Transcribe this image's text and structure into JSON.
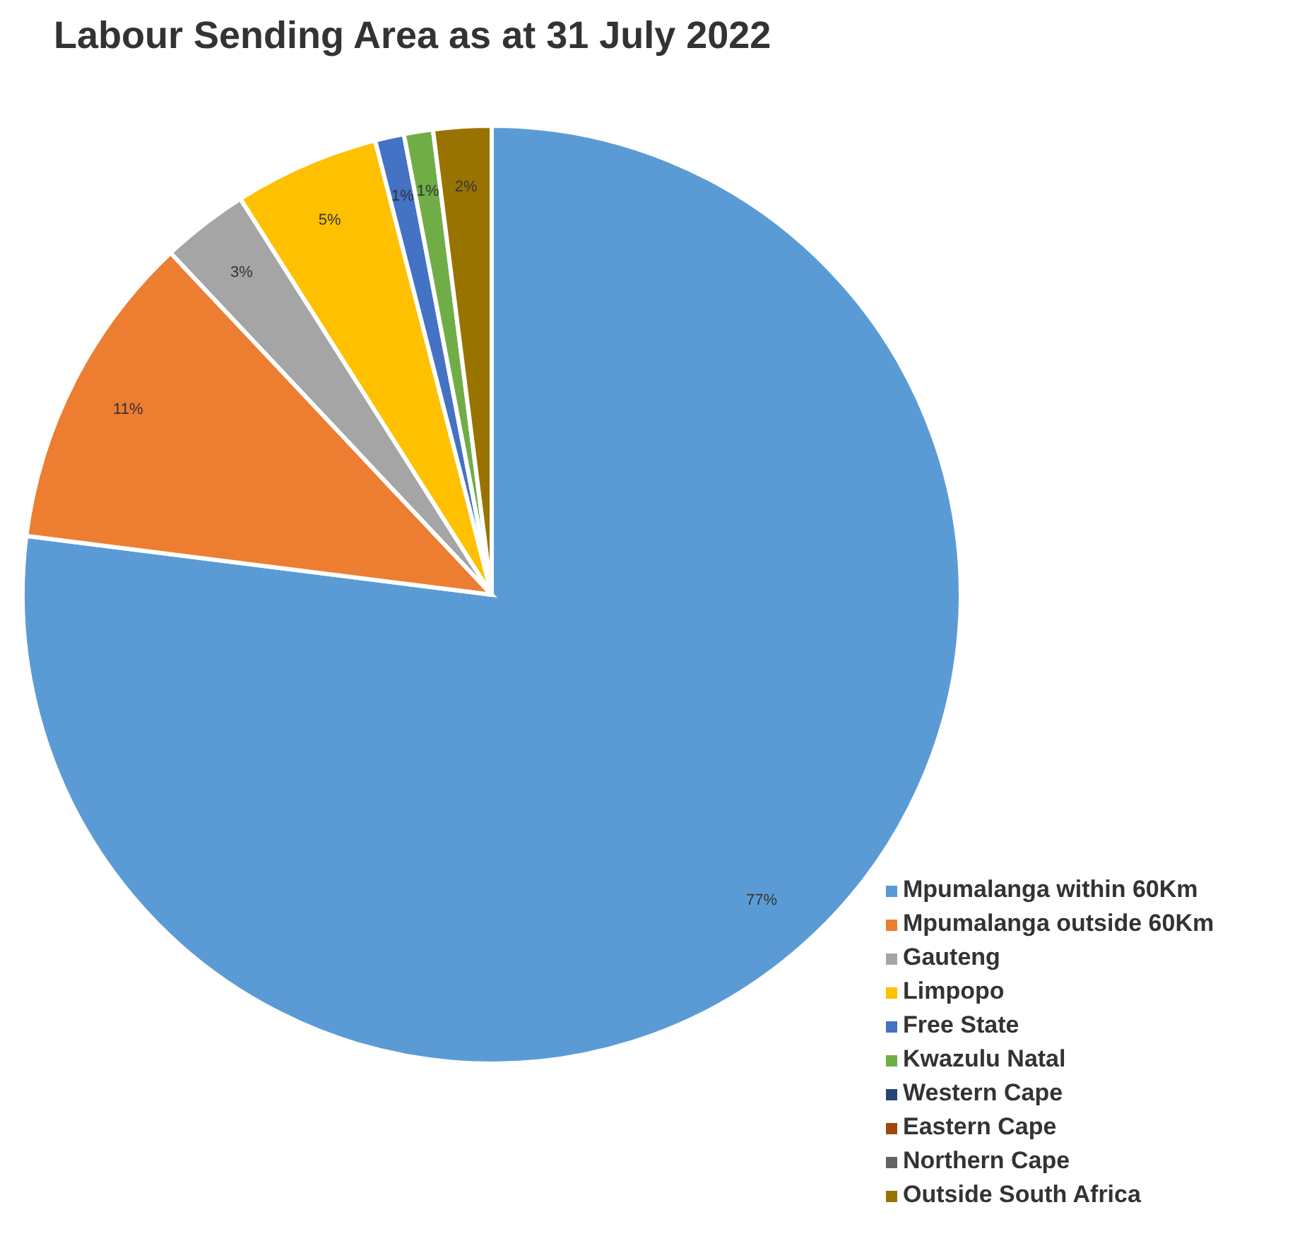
{
  "chart_data": {
    "type": "pie",
    "title": "Labour Sending Area as at 31 July 2022",
    "categories": [
      "Mpumalanga within 60Km",
      "Mpumalanga outside 60Km",
      "Gauteng",
      "Limpopo",
      "Free State",
      "Kwazulu Natal",
      "Western Cape",
      "Eastern Cape",
      "Northern Cape",
      "Outside South Africa"
    ],
    "values": [
      77,
      11,
      3,
      5,
      1,
      1,
      0,
      0,
      0,
      2
    ],
    "value_labels": [
      "77%",
      "11%",
      "3%",
      "5%",
      "1%",
      "1%",
      null,
      null,
      null,
      "2%"
    ],
    "colors": [
      "#5b9bd5",
      "#ed7d31",
      "#a5a5a5",
      "#ffc000",
      "#4472c4",
      "#70ad47",
      "#264478",
      "#9e480e",
      "#636363",
      "#997300"
    ],
    "legend": "bottom right"
  }
}
